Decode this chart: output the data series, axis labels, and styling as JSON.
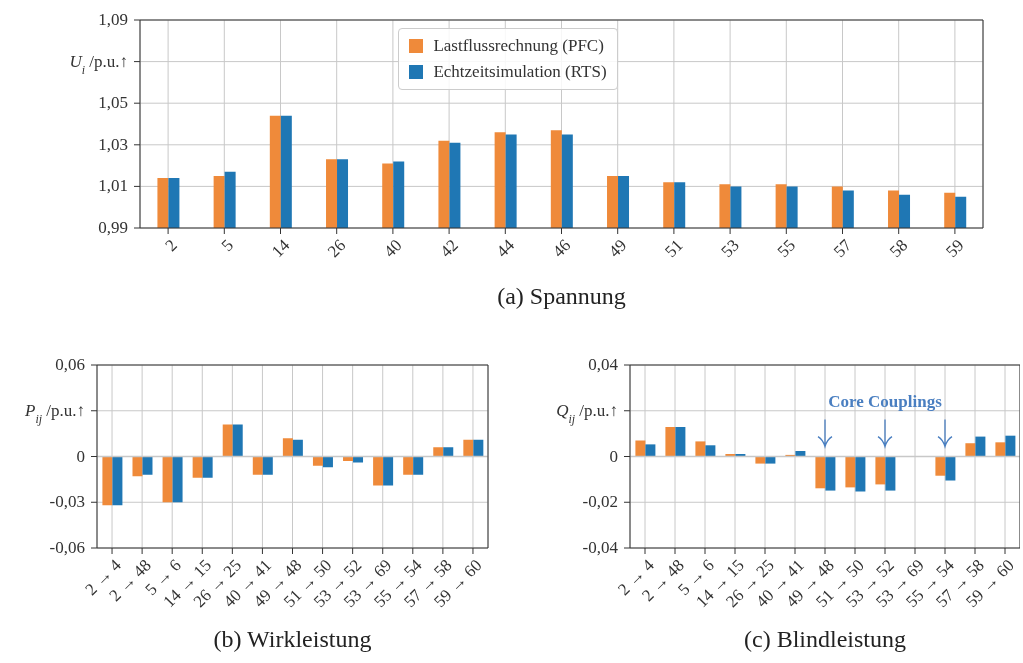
{
  "chart_data": [
    {
      "type": "bar",
      "title": "(a) Spannung",
      "ylabel": "U$_{i}$ /p.u.↑",
      "categories": [
        "2",
        "5",
        "14",
        "26",
        "40",
        "42",
        "44",
        "46",
        "49",
        "51",
        "53",
        "55",
        "57",
        "58",
        "59"
      ],
      "series": [
        {
          "name": "Lastflussrechnung (PFC)",
          "color": "#ef8a3a",
          "values": [
            1.014,
            1.015,
            1.044,
            1.023,
            1.021,
            1.032,
            1.036,
            1.037,
            1.015,
            1.012,
            1.011,
            1.011,
            1.01,
            1.008,
            1.007
          ]
        },
        {
          "name": "Echtzeitsimulation (RTS)",
          "color": "#1f77b4",
          "values": [
            1.014,
            1.017,
            1.044,
            1.023,
            1.022,
            1.031,
            1.035,
            1.035,
            1.015,
            1.012,
            1.01,
            1.01,
            1.008,
            1.006,
            1.005
          ]
        }
      ],
      "ylim": [
        0.99,
        1.09
      ],
      "yticks": [
        {
          "value": 0.99,
          "label": "0,99"
        },
        {
          "value": 1.01,
          "label": "1,01"
        },
        {
          "value": 1.03,
          "label": "1,03"
        },
        {
          "value": 1.05,
          "label": "1,05"
        },
        {
          "value": 1.07,
          "label": null
        },
        {
          "value": 1.09,
          "label": "1,09"
        }
      ],
      "grid": true,
      "legend": "top"
    },
    {
      "type": "bar",
      "title": "(b) Wirkleistung",
      "ylabel": "P$_{ij}$ /p.u.↑",
      "categories": [
        "2 → 4",
        "2 → 48",
        "5 → 6",
        "14 → 15",
        "26 → 25",
        "40 → 41",
        "49 → 48",
        "51 → 50",
        "53 → 52",
        "53 → 69",
        "55 → 54",
        "57 → 58",
        "59 → 60"
      ],
      "series": [
        {
          "color": "#ef8a3a",
          "values": [
            -0.032,
            -0.013,
            -0.03,
            -0.014,
            0.021,
            -0.012,
            0.012,
            -0.006,
            -0.003,
            -0.019,
            -0.012,
            0.006,
            0.011
          ]
        },
        {
          "color": "#1f77b4",
          "values": [
            -0.032,
            -0.012,
            -0.03,
            -0.014,
            0.021,
            -0.012,
            0.011,
            -0.007,
            -0.004,
            -0.019,
            -0.012,
            0.006,
            0.011
          ]
        }
      ],
      "ylim": [
        -0.06,
        0.06
      ],
      "yticks": [
        {
          "value": -0.06,
          "label": "-0,06"
        },
        {
          "value": -0.03,
          "label": "-0,03"
        },
        0,
        {
          "value": 0.03,
          "label": null
        },
        {
          "value": 0.06,
          "label": "0,06"
        }
      ],
      "grid": true
    },
    {
      "type": "bar",
      "title": "(c) Blindleistung",
      "ylabel": "Q$_{ij}$ /p.u.↑",
      "categories": [
        "2 → 4",
        "2 → 48",
        "5 → 6",
        "14 → 15",
        "26 → 25",
        "40 → 41",
        "49 → 48",
        "51 → 50",
        "53 → 52",
        "53 → 69",
        "55 → 54",
        "57 → 58",
        "59 → 60"
      ],
      "series": [
        {
          "color": "#ef8a3a",
          "values": [
            0.007,
            0.0129,
            0.0066,
            0.0011,
            -0.0031,
            0.0007,
            -0.0139,
            -0.0135,
            -0.0122,
            0,
            -0.0084,
            0.0058,
            0.0062
          ]
        },
        {
          "color": "#1f77b4",
          "values": [
            0.0053,
            0.0129,
            0.0049,
            0.0011,
            -0.0031,
            0.0024,
            -0.0149,
            -0.0153,
            -0.0149,
            null,
            -0.0105,
            0.0087,
            0.0091
          ]
        }
      ],
      "ylim": [
        -0.04,
        0.04
      ],
      "yticks": [
        {
          "value": -0.04,
          "label": "-0,04"
        },
        {
          "value": -0.02,
          "label": "-0,02"
        },
        0,
        {
          "value": 0.02,
          "label": null
        },
        {
          "value": 0.04,
          "label": "0,04"
        }
      ],
      "annotations": [
        "Core Couplings"
      ],
      "grid": true
    }
  ]
}
